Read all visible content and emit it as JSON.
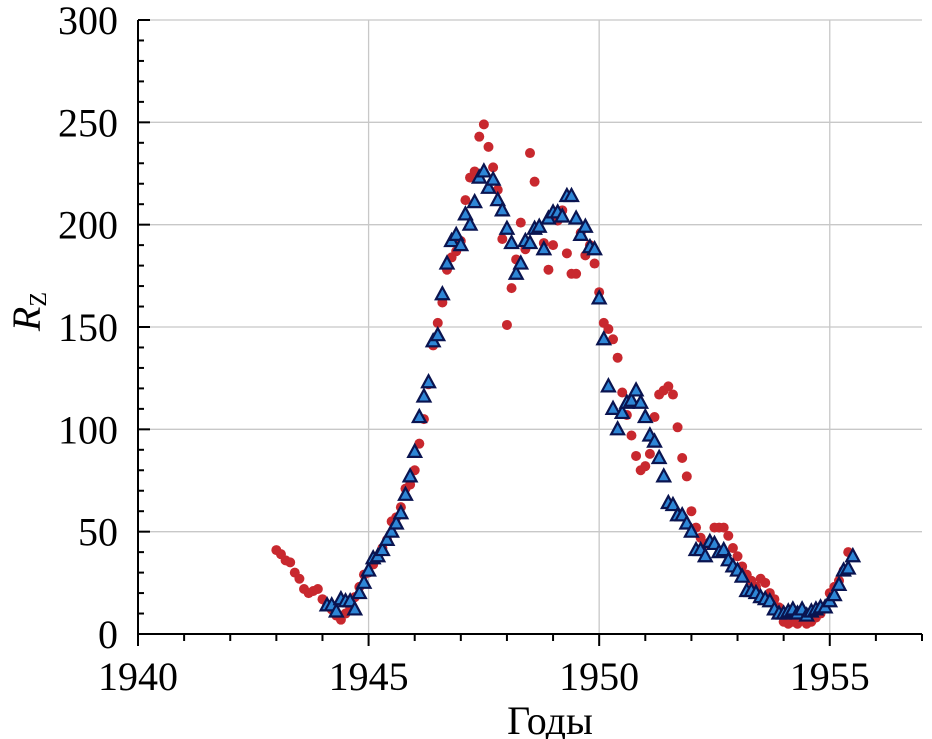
{
  "chart_data": {
    "type": "scatter",
    "xlabel": "Годы",
    "ylabel": "R",
    "ylabel_sub": "Z",
    "xlim": [
      1940,
      1957
    ],
    "ylim": [
      0,
      300
    ],
    "xticks": [
      "1940",
      "1945",
      "1950",
      "1955"
    ],
    "yticks": [
      "0",
      "50",
      "100",
      "150",
      "200",
      "250",
      "300"
    ],
    "grid": true,
    "colors": {
      "series1": "#c8282e",
      "series2_fill": "#2e86d6",
      "series2_edge": "#0a1450"
    },
    "series": [
      {
        "marker": "circle",
        "points": [
          [
            1943.0,
            41
          ],
          [
            1943.1,
            39
          ],
          [
            1943.2,
            36
          ],
          [
            1943.3,
            35
          ],
          [
            1943.4,
            30
          ],
          [
            1943.5,
            27
          ],
          [
            1943.6,
            22
          ],
          [
            1943.7,
            20
          ],
          [
            1943.8,
            21
          ],
          [
            1943.9,
            22
          ],
          [
            1944.0,
            17
          ],
          [
            1944.1,
            14
          ],
          [
            1944.2,
            12
          ],
          [
            1944.3,
            9
          ],
          [
            1944.4,
            7
          ],
          [
            1944.5,
            10
          ],
          [
            1944.6,
            13
          ],
          [
            1944.7,
            18
          ],
          [
            1944.8,
            23
          ],
          [
            1944.9,
            29
          ],
          [
            1945.0,
            30
          ],
          [
            1945.1,
            34
          ],
          [
            1945.2,
            38
          ],
          [
            1945.3,
            42
          ],
          [
            1945.4,
            46
          ],
          [
            1945.5,
            55
          ],
          [
            1945.6,
            57
          ],
          [
            1945.7,
            62
          ],
          [
            1945.8,
            71
          ],
          [
            1945.9,
            73
          ],
          [
            1946.0,
            80
          ],
          [
            1946.1,
            93
          ],
          [
            1946.2,
            105
          ],
          [
            1946.3,
            122
          ],
          [
            1946.4,
            141
          ],
          [
            1946.5,
            152
          ],
          [
            1946.6,
            162
          ],
          [
            1946.7,
            178
          ],
          [
            1946.8,
            184
          ],
          [
            1946.9,
            187
          ],
          [
            1947.0,
            192
          ],
          [
            1947.1,
            212
          ],
          [
            1947.2,
            223
          ],
          [
            1947.3,
            226
          ],
          [
            1947.4,
            243
          ],
          [
            1947.5,
            249
          ],
          [
            1947.6,
            238
          ],
          [
            1947.7,
            228
          ],
          [
            1947.8,
            217
          ],
          [
            1947.9,
            193
          ],
          [
            1948.0,
            151
          ],
          [
            1948.1,
            169
          ],
          [
            1948.2,
            183
          ],
          [
            1948.3,
            201
          ],
          [
            1948.4,
            188
          ],
          [
            1948.5,
            235
          ],
          [
            1948.6,
            221
          ],
          [
            1948.7,
            198
          ],
          [
            1948.8,
            191
          ],
          [
            1948.9,
            178
          ],
          [
            1949.0,
            190
          ],
          [
            1949.1,
            202
          ],
          [
            1949.2,
            207
          ],
          [
            1949.3,
            186
          ],
          [
            1949.4,
            176
          ],
          [
            1949.5,
            176
          ],
          [
            1949.6,
            196
          ],
          [
            1949.7,
            185
          ],
          [
            1949.8,
            190
          ],
          [
            1949.9,
            181
          ],
          [
            1950.0,
            167
          ],
          [
            1950.1,
            152
          ],
          [
            1950.2,
            149
          ],
          [
            1950.3,
            144
          ],
          [
            1950.4,
            135
          ],
          [
            1950.5,
            118
          ],
          [
            1950.6,
            107
          ],
          [
            1950.7,
            97
          ],
          [
            1950.8,
            87
          ],
          [
            1950.9,
            80
          ],
          [
            1951.0,
            82
          ],
          [
            1951.1,
            88
          ],
          [
            1951.2,
            106
          ],
          [
            1951.3,
            117
          ],
          [
            1951.4,
            119
          ],
          [
            1951.5,
            121
          ],
          [
            1951.6,
            117
          ],
          [
            1951.7,
            101
          ],
          [
            1951.8,
            86
          ],
          [
            1951.9,
            77
          ],
          [
            1952.0,
            60
          ],
          [
            1952.1,
            52
          ],
          [
            1952.2,
            47
          ],
          [
            1952.3,
            44
          ],
          [
            1952.4,
            45
          ],
          [
            1952.5,
            52
          ],
          [
            1952.6,
            52
          ],
          [
            1952.7,
            52
          ],
          [
            1952.8,
            48
          ],
          [
            1952.9,
            42
          ],
          [
            1953.0,
            38
          ],
          [
            1953.1,
            33
          ],
          [
            1953.2,
            29
          ],
          [
            1953.3,
            26
          ],
          [
            1953.4,
            23
          ],
          [
            1953.5,
            27
          ],
          [
            1953.6,
            25
          ],
          [
            1953.7,
            20
          ],
          [
            1953.8,
            17
          ],
          [
            1953.9,
            13
          ],
          [
            1954.0,
            6
          ],
          [
            1954.1,
            5
          ],
          [
            1954.2,
            6
          ],
          [
            1954.3,
            5
          ],
          [
            1954.4,
            7
          ],
          [
            1954.5,
            5
          ],
          [
            1954.6,
            6
          ],
          [
            1954.7,
            8
          ],
          [
            1954.8,
            10
          ],
          [
            1954.9,
            13
          ],
          [
            1955.0,
            20
          ],
          [
            1955.1,
            23
          ],
          [
            1955.2,
            26
          ],
          [
            1955.3,
            31
          ],
          [
            1955.4,
            40
          ]
        ]
      },
      {
        "marker": "triangle",
        "points": [
          [
            1944.1,
            14
          ],
          [
            1944.2,
            14
          ],
          [
            1944.3,
            11
          ],
          [
            1944.4,
            17
          ],
          [
            1944.5,
            16
          ],
          [
            1944.6,
            16
          ],
          [
            1944.7,
            12
          ],
          [
            1944.8,
            20
          ],
          [
            1944.9,
            25
          ],
          [
            1945.0,
            31
          ],
          [
            1945.1,
            37
          ],
          [
            1945.2,
            38
          ],
          [
            1945.3,
            41
          ],
          [
            1945.4,
            46
          ],
          [
            1945.5,
            50
          ],
          [
            1945.6,
            54
          ],
          [
            1945.7,
            59
          ],
          [
            1945.8,
            68
          ],
          [
            1945.9,
            77
          ],
          [
            1946.0,
            89
          ],
          [
            1946.1,
            106
          ],
          [
            1946.2,
            116
          ],
          [
            1946.3,
            123
          ],
          [
            1946.4,
            143
          ],
          [
            1946.5,
            146
          ],
          [
            1946.6,
            166
          ],
          [
            1946.7,
            181
          ],
          [
            1946.8,
            192
          ],
          [
            1946.9,
            195
          ],
          [
            1947.0,
            190
          ],
          [
            1947.1,
            205
          ],
          [
            1947.2,
            200
          ],
          [
            1947.3,
            211
          ],
          [
            1947.4,
            223
          ],
          [
            1947.5,
            226
          ],
          [
            1947.6,
            218
          ],
          [
            1947.7,
            222
          ],
          [
            1947.8,
            212
          ],
          [
            1947.9,
            207
          ],
          [
            1948.0,
            198
          ],
          [
            1948.1,
            191
          ],
          [
            1948.2,
            176
          ],
          [
            1948.3,
            181
          ],
          [
            1948.4,
            192
          ],
          [
            1948.5,
            191
          ],
          [
            1948.6,
            198
          ],
          [
            1948.7,
            199
          ],
          [
            1948.8,
            188
          ],
          [
            1948.9,
            203
          ],
          [
            1949.0,
            206
          ],
          [
            1949.1,
            206
          ],
          [
            1949.2,
            204
          ],
          [
            1949.3,
            214
          ],
          [
            1949.4,
            214
          ],
          [
            1949.5,
            203
          ],
          [
            1949.6,
            195
          ],
          [
            1949.7,
            199
          ],
          [
            1949.8,
            189
          ],
          [
            1949.9,
            188
          ],
          [
            1950.0,
            164
          ],
          [
            1950.1,
            144
          ],
          [
            1950.2,
            121
          ],
          [
            1950.3,
            110
          ],
          [
            1950.4,
            100
          ],
          [
            1950.5,
            108
          ],
          [
            1950.6,
            113
          ],
          [
            1950.7,
            114
          ],
          [
            1950.8,
            119
          ],
          [
            1950.9,
            113
          ],
          [
            1951.0,
            106
          ],
          [
            1951.1,
            97
          ],
          [
            1951.2,
            94
          ],
          [
            1951.3,
            86
          ],
          [
            1951.4,
            77
          ],
          [
            1951.5,
            64
          ],
          [
            1951.6,
            63
          ],
          [
            1951.7,
            58
          ],
          [
            1951.8,
            58
          ],
          [
            1951.9,
            54
          ],
          [
            1952.0,
            50
          ],
          [
            1952.1,
            41
          ],
          [
            1952.2,
            41
          ],
          [
            1952.3,
            38
          ],
          [
            1952.4,
            45
          ],
          [
            1952.5,
            44
          ],
          [
            1952.6,
            40
          ],
          [
            1952.7,
            41
          ],
          [
            1952.8,
            36
          ],
          [
            1952.9,
            33
          ],
          [
            1953.0,
            31
          ],
          [
            1953.1,
            28
          ],
          [
            1953.2,
            21
          ],
          [
            1953.3,
            21
          ],
          [
            1953.4,
            20
          ],
          [
            1953.5,
            18
          ],
          [
            1953.6,
            17
          ],
          [
            1953.7,
            16
          ],
          [
            1953.8,
            12
          ],
          [
            1953.9,
            10
          ],
          [
            1954.0,
            10
          ],
          [
            1954.1,
            11
          ],
          [
            1954.2,
            12
          ],
          [
            1954.3,
            10
          ],
          [
            1954.4,
            12
          ],
          [
            1954.5,
            9
          ],
          [
            1954.6,
            11
          ],
          [
            1954.7,
            12
          ],
          [
            1954.8,
            13
          ],
          [
            1954.9,
            13
          ],
          [
            1955.0,
            16
          ],
          [
            1955.1,
            19
          ],
          [
            1955.2,
            24
          ],
          [
            1955.3,
            31
          ],
          [
            1955.4,
            32
          ],
          [
            1955.5,
            38
          ]
        ]
      }
    ]
  }
}
